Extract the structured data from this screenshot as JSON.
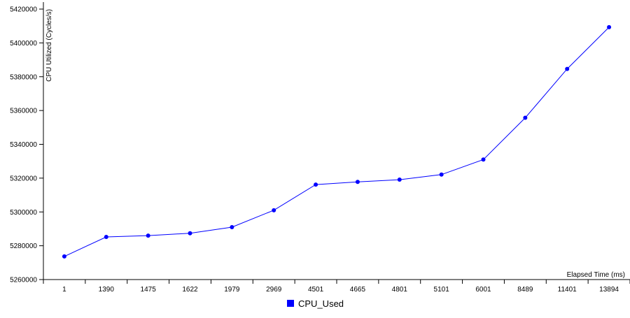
{
  "chart_data": {
    "type": "line",
    "categories": [
      "1",
      "1390",
      "1475",
      "1622",
      "1979",
      "2969",
      "4501",
      "4665",
      "4801",
      "5101",
      "6001",
      "8489",
      "11401",
      "13894"
    ],
    "series": [
      {
        "name": "CPU_Used",
        "color": "#0000ff",
        "values": [
          5273700,
          5285200,
          5286000,
          5287400,
          5291000,
          5301000,
          5316200,
          5317800,
          5319100,
          5322100,
          5331000,
          5355700,
          5384600,
          5409300
        ]
      }
    ],
    "xlabel": "Elapsed Time (ms)",
    "ylabel": "CPU Utilized (Cycles/s)",
    "ylim": [
      5260000,
      5420000
    ],
    "yticks": [
      "5260000",
      "5280000",
      "5300000",
      "5320000",
      "5340000",
      "5360000",
      "5380000",
      "5400000",
      "5420000"
    ],
    "grid": false,
    "legend_position": "bottom-center"
  }
}
